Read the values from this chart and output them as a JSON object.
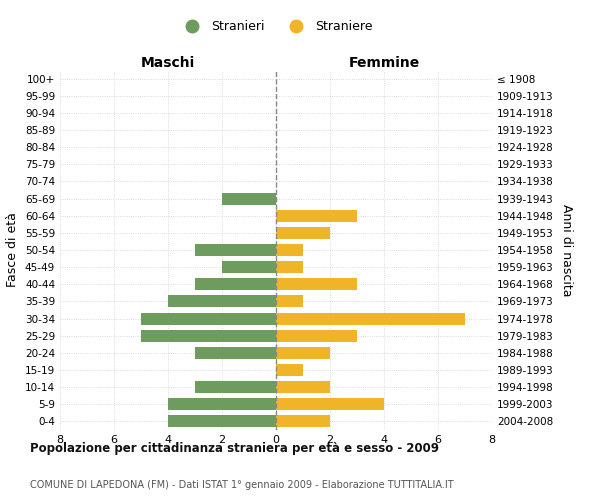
{
  "age_groups": [
    "100+",
    "95-99",
    "90-94",
    "85-89",
    "80-84",
    "75-79",
    "70-74",
    "65-69",
    "60-64",
    "55-59",
    "50-54",
    "45-49",
    "40-44",
    "35-39",
    "30-34",
    "25-29",
    "20-24",
    "15-19",
    "10-14",
    "5-9",
    "0-4"
  ],
  "anni_nascita": [
    "≤ 1908",
    "1909-1913",
    "1914-1918",
    "1919-1923",
    "1924-1928",
    "1929-1933",
    "1934-1938",
    "1939-1943",
    "1944-1948",
    "1949-1953",
    "1954-1958",
    "1959-1963",
    "1964-1968",
    "1969-1973",
    "1974-1978",
    "1979-1983",
    "1984-1988",
    "1989-1993",
    "1994-1998",
    "1999-2003",
    "2004-2008"
  ],
  "maschi": [
    0,
    0,
    0,
    0,
    0,
    0,
    0,
    2,
    0,
    0,
    3,
    2,
    3,
    4,
    5,
    5,
    3,
    0,
    3,
    4,
    4
  ],
  "femmine": [
    0,
    0,
    0,
    0,
    0,
    0,
    0,
    0,
    3,
    2,
    1,
    1,
    3,
    1,
    7,
    3,
    2,
    1,
    2,
    4,
    2
  ],
  "maschi_color": "#6e9b5e",
  "femmine_color": "#f0b429",
  "grid_color": "#d0d0d0",
  "center_line_color": "#888888",
  "xlim": 8,
  "title": "Popolazione per cittadinanza straniera per età e sesso - 2009",
  "subtitle": "COMUNE DI LAPEDONA (FM) - Dati ISTAT 1° gennaio 2009 - Elaborazione TUTTITALIA.IT",
  "ylabel_left": "Fasce di età",
  "ylabel_right": "Anni di nascita",
  "xlabel_maschi": "Maschi",
  "xlabel_femmine": "Femmine",
  "legend_stranieri": "Stranieri",
  "legend_straniere": "Straniere"
}
